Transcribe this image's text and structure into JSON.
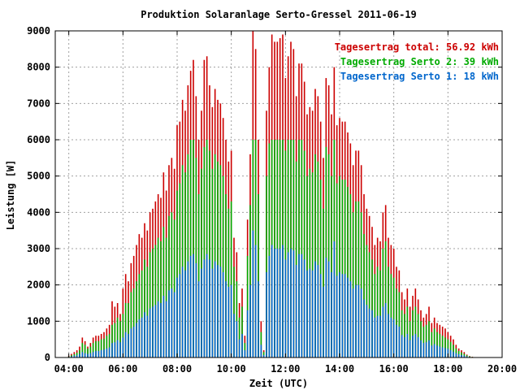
{
  "chart_data": {
    "type": "bar",
    "title": "Produktion Solaranlage Serto-Gressel 2011-06-19",
    "xlabel": "Zeit (UTC)",
    "ylabel": "Leistung [W]",
    "xlim": [
      3.5,
      20.0
    ],
    "ylim": [
      0,
      9000
    ],
    "x_ticks": [
      "04:00",
      "06:00",
      "08:00",
      "10:00",
      "12:00",
      "14:00",
      "16:00",
      "18:00",
      "20:00"
    ],
    "x_tick_hours": [
      4,
      6,
      8,
      10,
      12,
      14,
      16,
      18,
      20
    ],
    "y_ticks": [
      0,
      1000,
      2000,
      3000,
      4000,
      5000,
      6000,
      7000,
      8000,
      9000
    ],
    "grid": true,
    "legend_position": "top-right",
    "stacking": "overlaid",
    "legend": [
      {
        "label": "Tagesertrag total: 56.92 kWh",
        "color": "#cc0000"
      },
      {
        "label": "Tagesertrag Serto 2: 39 kWh",
        "color": "#00aa00"
      },
      {
        "label": "Tagesertrag Serto 1: 18 kWh",
        "color": "#0066cc"
      }
    ],
    "x_hours": [
      4.0,
      4.1,
      4.2,
      4.3,
      4.4,
      4.5,
      4.6,
      4.7,
      4.8,
      4.9,
      5.0,
      5.1,
      5.2,
      5.3,
      5.4,
      5.5,
      5.6,
      5.7,
      5.8,
      5.9,
      6.0,
      6.1,
      6.2,
      6.3,
      6.4,
      6.5,
      6.6,
      6.7,
      6.8,
      6.9,
      7.0,
      7.1,
      7.2,
      7.3,
      7.4,
      7.5,
      7.6,
      7.7,
      7.8,
      7.9,
      8.0,
      8.1,
      8.2,
      8.3,
      8.4,
      8.5,
      8.6,
      8.7,
      8.8,
      8.9,
      9.0,
      9.1,
      9.2,
      9.3,
      9.4,
      9.5,
      9.6,
      9.7,
      9.8,
      9.9,
      10.0,
      10.1,
      10.2,
      10.3,
      10.4,
      10.5,
      10.6,
      10.7,
      10.8,
      10.9,
      11.0,
      11.1,
      11.2,
      11.3,
      11.4,
      11.5,
      11.6,
      11.7,
      11.8,
      11.9,
      12.0,
      12.1,
      12.2,
      12.3,
      12.4,
      12.5,
      12.6,
      12.7,
      12.8,
      12.9,
      13.0,
      13.1,
      13.2,
      13.3,
      13.4,
      13.5,
      13.6,
      13.7,
      13.8,
      13.9,
      14.0,
      14.1,
      14.2,
      14.3,
      14.4,
      14.5,
      14.6,
      14.7,
      14.8,
      14.9,
      15.0,
      15.1,
      15.2,
      15.3,
      15.4,
      15.5,
      15.6,
      15.7,
      15.8,
      15.9,
      16.0,
      16.1,
      16.2,
      16.3,
      16.4,
      16.5,
      16.6,
      16.7,
      16.8,
      16.9,
      17.0,
      17.1,
      17.2,
      17.3,
      17.4,
      17.5,
      17.6,
      17.7,
      17.8,
      17.9,
      18.0,
      18.1,
      18.2,
      18.3,
      18.4,
      18.5,
      18.6,
      18.7,
      18.8,
      18.9,
      19.0,
      19.1,
      19.2,
      19.3
    ],
    "series": [
      {
        "name": "total",
        "color": "#cc0000",
        "values": [
          50,
          100,
          150,
          200,
          300,
          550,
          450,
          300,
          400,
          550,
          600,
          600,
          650,
          700,
          800,
          900,
          1550,
          1400,
          1500,
          1200,
          1900,
          2300,
          2100,
          2600,
          2800,
          3100,
          3400,
          3300,
          3700,
          3500,
          4000,
          4100,
          4300,
          4500,
          4400,
          5100,
          4600,
          5300,
          5500,
          5200,
          6400,
          6500,
          7100,
          6800,
          7500,
          7900,
          8200,
          7200,
          6000,
          6800,
          8200,
          8300,
          7500,
          6900,
          7400,
          7100,
          7000,
          6600,
          6000,
          5400,
          5700,
          3300,
          2900,
          1500,
          1900,
          600,
          3800,
          5600,
          9000,
          8500,
          6000,
          1000,
          200,
          6800,
          8000,
          8900,
          8700,
          8700,
          8800,
          8900,
          7700,
          8300,
          8700,
          8500,
          7200,
          8100,
          8100,
          7600,
          6700,
          6900,
          6800,
          7400,
          7200,
          6500,
          5500,
          7700,
          7500,
          6700,
          8000,
          6400,
          6600,
          6500,
          6500,
          6200,
          5900,
          5300,
          5700,
          5700,
          5300,
          4500,
          4100,
          3900,
          3600,
          3100,
          3300,
          3200,
          4000,
          4200,
          3300,
          3100,
          3000,
          2500,
          2400,
          1800,
          1600,
          1900,
          1400,
          1700,
          1900,
          1600,
          1300,
          1100,
          1200,
          1400,
          950,
          1100,
          950,
          900,
          850,
          800,
          700,
          600,
          500,
          350,
          250,
          200,
          150,
          80,
          40,
          20
        ]
      },
      {
        "name": "Serto 2",
        "color": "#00aa00",
        "values": [
          30,
          60,
          90,
          130,
          200,
          400,
          350,
          250,
          300,
          400,
          450,
          450,
          500,
          520,
          600,
          650,
          900,
          950,
          1100,
          1000,
          1200,
          1500,
          1500,
          1800,
          1900,
          2100,
          2300,
          2400,
          2700,
          2500,
          2900,
          3000,
          3100,
          3300,
          3200,
          3600,
          3300,
          3900,
          4000,
          3800,
          4600,
          4800,
          5300,
          5100,
          5600,
          6000,
          6000,
          5500,
          4500,
          5200,
          5800,
          6000,
          5700,
          5200,
          5600,
          5400,
          5300,
          5000,
          4500,
          4100,
          4300,
          2500,
          2100,
          1100,
          1400,
          400,
          2800,
          4200,
          6000,
          6000,
          4500,
          700,
          150,
          5000,
          5900,
          6000,
          6000,
          6000,
          6000,
          6000,
          5700,
          6000,
          6000,
          6000,
          5400,
          6000,
          6000,
          5700,
          5000,
          5200,
          5100,
          5600,
          5400,
          4900,
          4100,
          5800,
          5600,
          5000,
          6000,
          4800,
          5000,
          4900,
          4900,
          4700,
          4500,
          4000,
          4300,
          4300,
          4000,
          3400,
          3100,
          2900,
          2700,
          2300,
          2500,
          2400,
          3000,
          3200,
          2500,
          2300,
          2200,
          1900,
          1800,
          1300,
          1200,
          1400,
          1000,
          1300,
          1400,
          1200,
          1000,
          850,
          900,
          1000,
          700,
          800,
          700,
          650,
          600,
          550,
          500,
          430,
          350,
          250,
          180,
          140,
          100,
          60,
          30,
          15
        ]
      },
      {
        "name": "Serto 1",
        "color": "#0066cc",
        "values": [
          15,
          30,
          50,
          60,
          100,
          150,
          120,
          100,
          120,
          150,
          180,
          180,
          200,
          220,
          250,
          280,
          400,
          420,
          480,
          420,
          550,
          700,
          650,
          800,
          850,
          950,
          1050,
          1100,
          1250,
          1150,
          1350,
          1400,
          1450,
          1550,
          1500,
          1700,
          1550,
          1850,
          1900,
          1800,
          2200,
          2300,
          2500,
          2400,
          2650,
          2800,
          2850,
          2600,
          2100,
          2450,
          2700,
          2850,
          2700,
          2450,
          2650,
          2550,
          2500,
          2350,
          2100,
          1950,
          2000,
          1200,
          1000,
          500,
          650,
          200,
          1300,
          2000,
          3500,
          3100,
          2100,
          350,
          70,
          2350,
          2800,
          3100,
          3000,
          3000,
          3000,
          3100,
          2700,
          2900,
          3000,
          2950,
          2550,
          2850,
          2850,
          2700,
          2400,
          2450,
          2400,
          2650,
          2550,
          2300,
          1950,
          2750,
          2650,
          2350,
          3200,
          2250,
          2350,
          2300,
          2300,
          2200,
          2100,
          1900,
          2000,
          2000,
          1900,
          1600,
          1450,
          1350,
          1300,
          1100,
          1150,
          1150,
          1400,
          1500,
          1200,
          1100,
          1050,
          900,
          850,
          620,
          560,
          650,
          480,
          600,
          650,
          560,
          470,
          400,
          420,
          470,
          330,
          370,
          330,
          300,
          280,
          260,
          240,
          200,
          160,
          120,
          90,
          70,
          50,
          30,
          15,
          8
        ]
      }
    ]
  }
}
